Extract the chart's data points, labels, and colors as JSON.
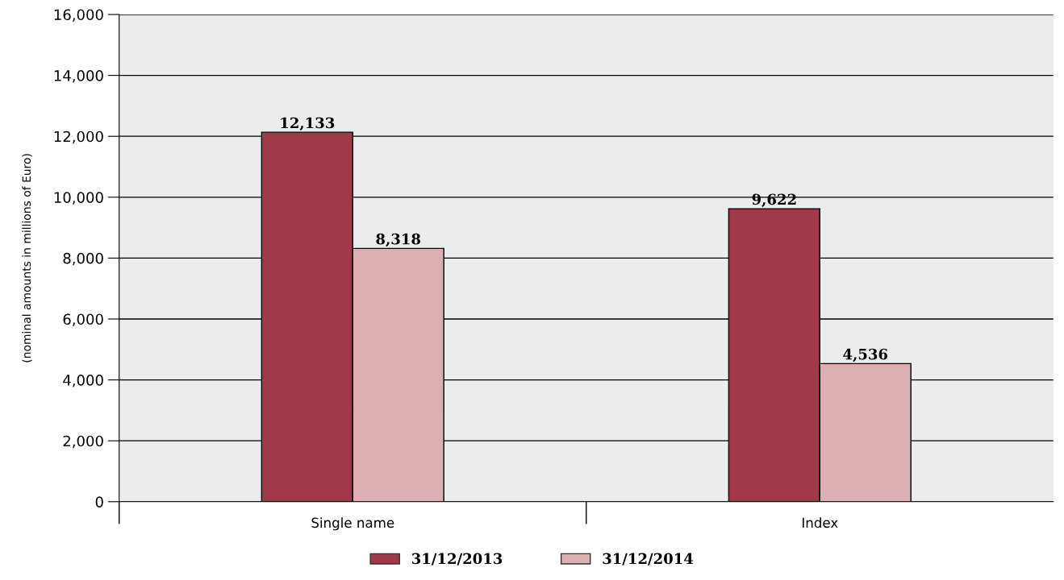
{
  "chart_data": {
    "type": "bar",
    "categories": [
      "Single name",
      "Index"
    ],
    "series": [
      {
        "name": "31/12/2013",
        "color": "#a03a4a",
        "values": [
          12133,
          9622
        ]
      },
      {
        "name": "31/12/2014",
        "color": "#dcb0b2",
        "values": [
          8318,
          4536
        ]
      }
    ],
    "ylabel": "(nominal amounts in millions of Euro)",
    "ylim": [
      0,
      16000
    ],
    "yticks": [
      0,
      {
        "value": 2000,
        "label": "2,000"
      },
      {
        "value": 4000,
        "label": "4,000"
      },
      {
        "value": 6000,
        "label": "6,000"
      },
      {
        "value": 8000,
        "label": "8,000"
      },
      {
        "value": 10000,
        "label": "10,000"
      },
      {
        "value": 12000,
        "label": "12,000"
      },
      {
        "value": 14000,
        "label": "14,000"
      },
      {
        "value": 16000,
        "label": "16,000"
      }
    ],
    "value_labels": [
      [
        "12,133",
        "9,622"
      ],
      [
        "8,318",
        "4,536"
      ]
    ],
    "grid": "y",
    "legend": "bottom"
  }
}
